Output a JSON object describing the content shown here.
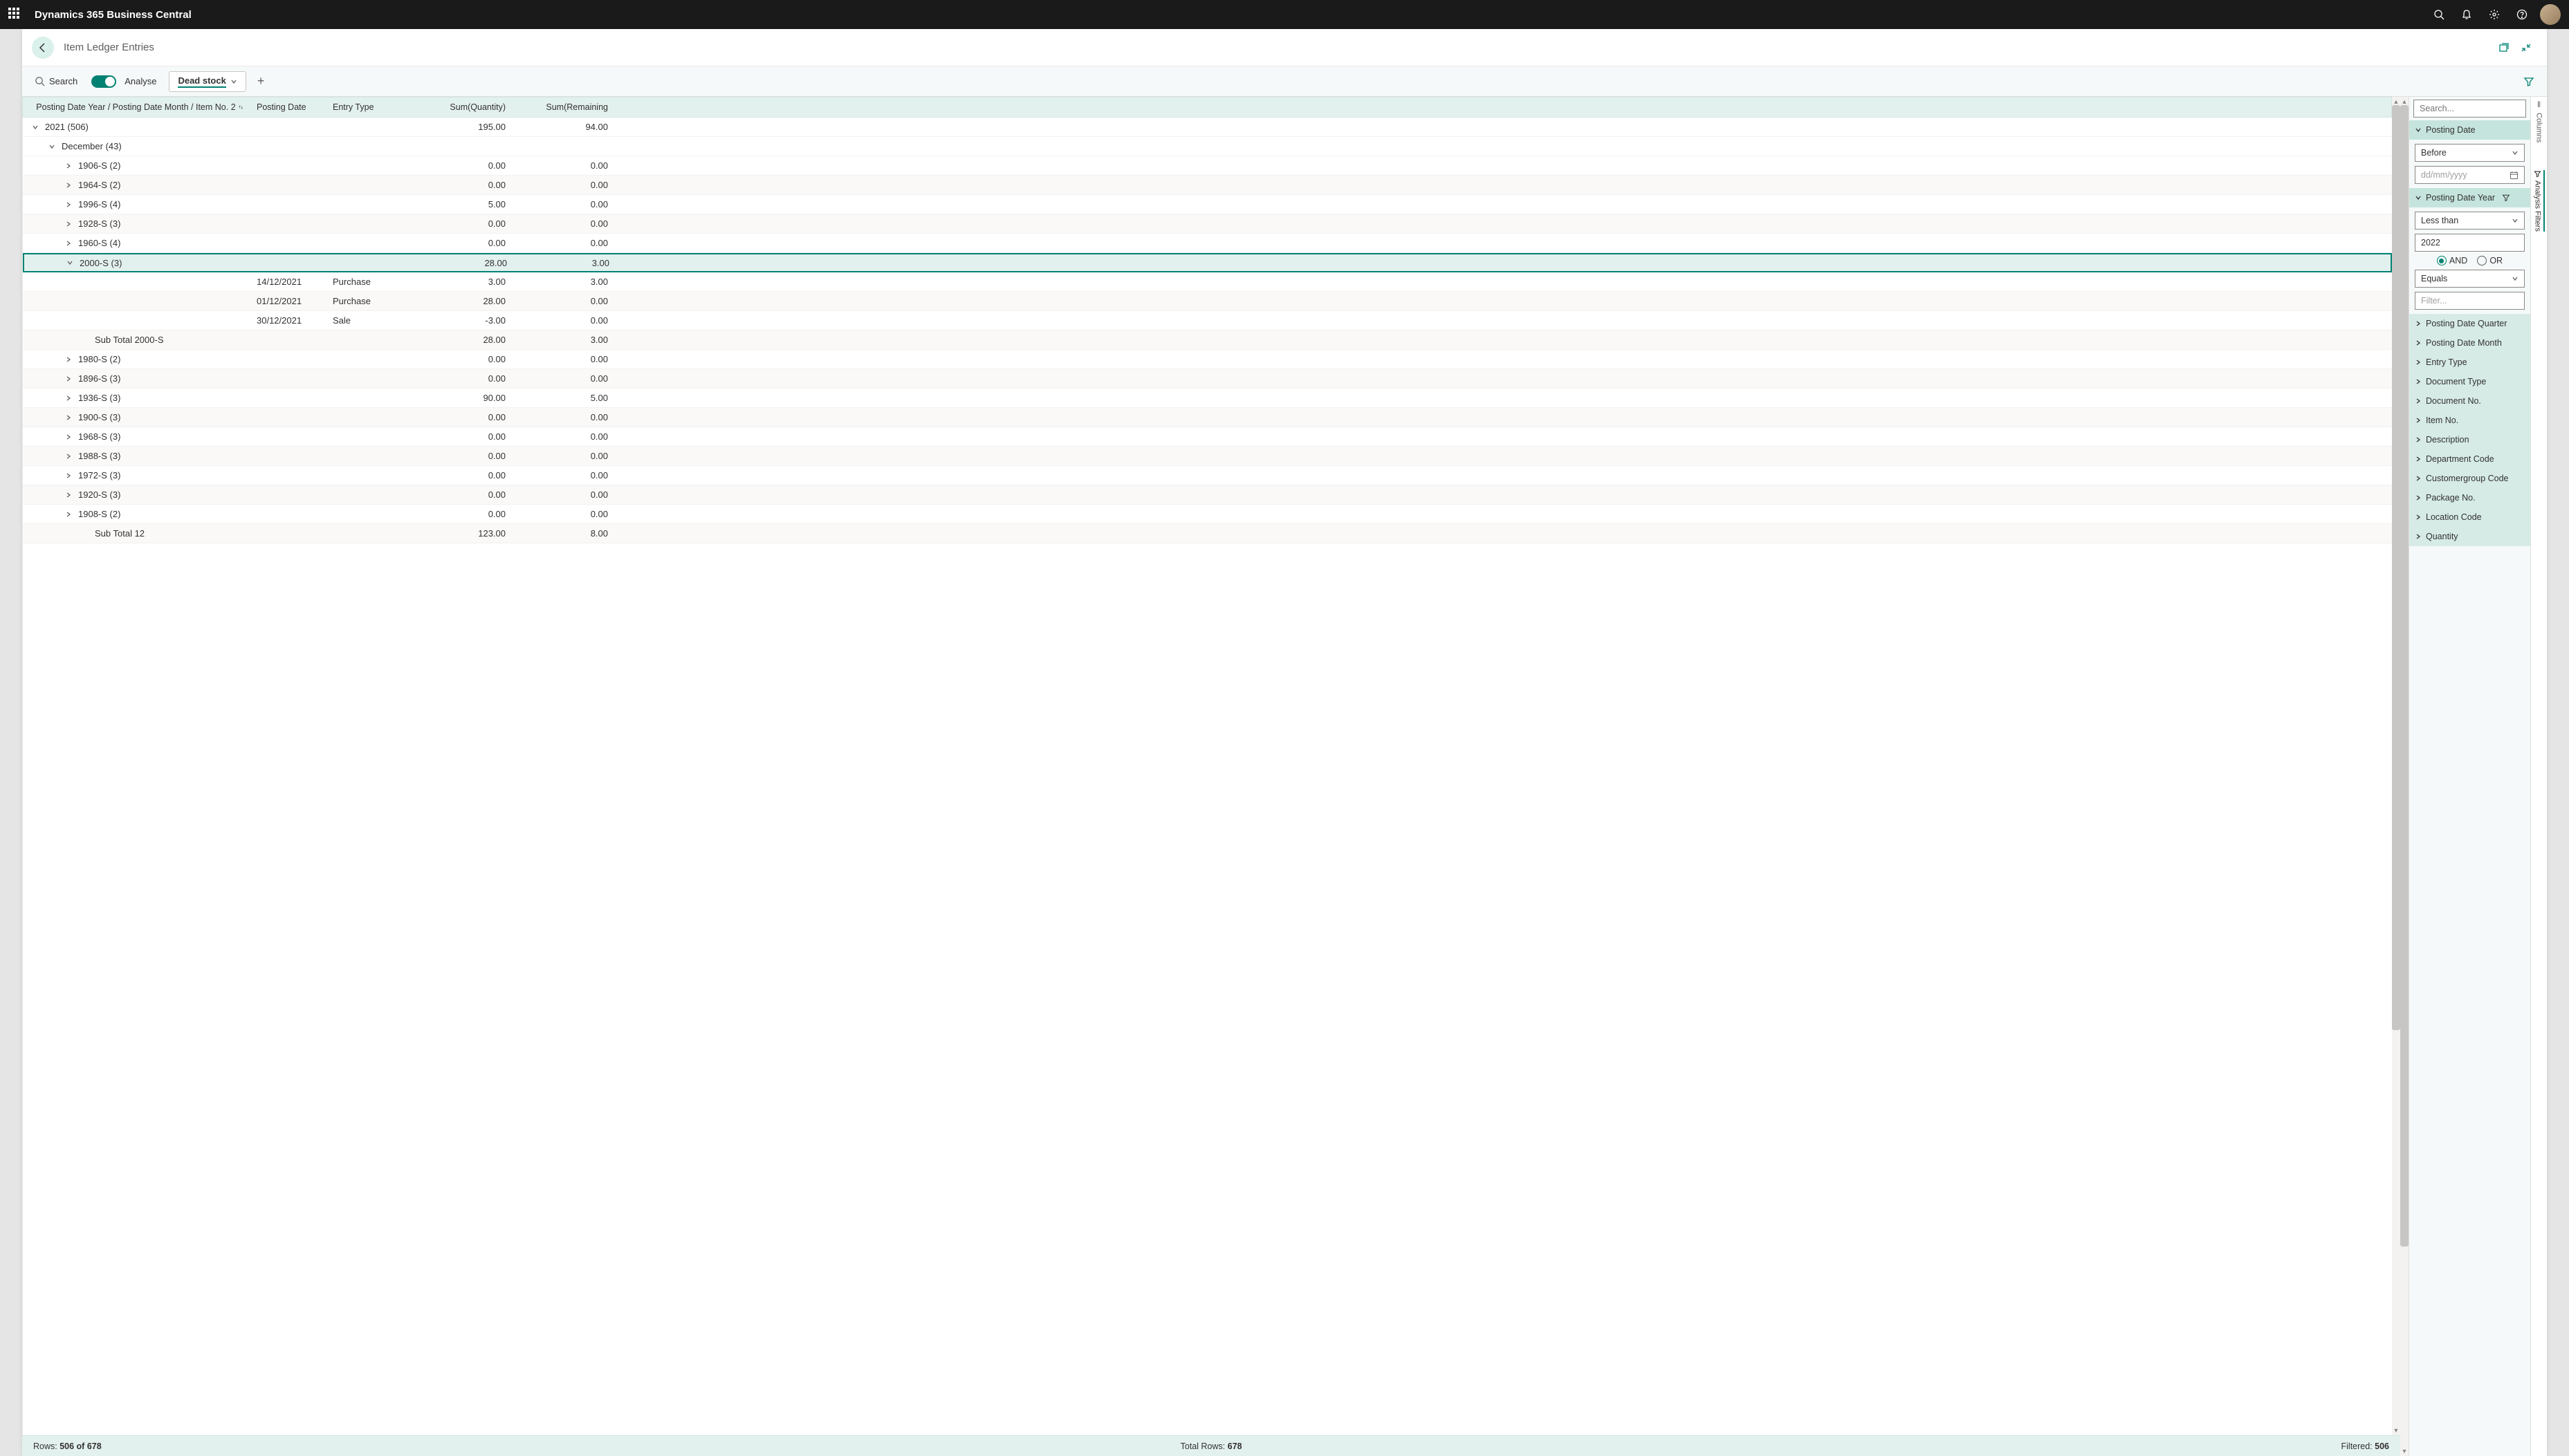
{
  "brand": "Dynamics 365 Business Central",
  "page_title": "Item Ledger Entries",
  "toolbar": {
    "search_label": "Search",
    "analyse_label": "Analyse",
    "tab_label": "Dead stock"
  },
  "columns": {
    "group": "Posting Date Year / Posting Date Month / Item No. 2",
    "posting_date": "Posting Date",
    "entry_type": "Entry Type",
    "sum_qty": "Sum(Quantity)",
    "sum_rem": "Sum(Remaining"
  },
  "rows": [
    {
      "type": "group",
      "indent": 0,
      "expanded": true,
      "label": "2021 (506)",
      "qty": "195.00",
      "rem": "94.00"
    },
    {
      "type": "group",
      "indent": 1,
      "expanded": true,
      "label": "December (43)",
      "qty": "",
      "rem": ""
    },
    {
      "type": "group",
      "indent": 2,
      "expanded": false,
      "label": "1906-S (2)",
      "qty": "0.00",
      "rem": "0.00"
    },
    {
      "type": "group",
      "indent": 2,
      "expanded": false,
      "label": "1964-S (2)",
      "qty": "0.00",
      "rem": "0.00",
      "striped": true
    },
    {
      "type": "group",
      "indent": 2,
      "expanded": false,
      "label": "1996-S (4)",
      "qty": "5.00",
      "rem": "0.00"
    },
    {
      "type": "group",
      "indent": 2,
      "expanded": false,
      "label": "1928-S (3)",
      "qty": "0.00",
      "rem": "0.00",
      "striped": true
    },
    {
      "type": "group",
      "indent": 2,
      "expanded": false,
      "label": "1960-S (4)",
      "qty": "0.00",
      "rem": "0.00"
    },
    {
      "type": "group",
      "indent": 2,
      "expanded": true,
      "label": "2000-S (3)",
      "qty": "28.00",
      "rem": "3.00",
      "selected": true
    },
    {
      "type": "detail",
      "date": "14/12/2021",
      "etype": "Purchase",
      "qty": "3.00",
      "rem": "3.00"
    },
    {
      "type": "detail",
      "date": "01/12/2021",
      "etype": "Purchase",
      "qty": "28.00",
      "rem": "0.00",
      "striped": true
    },
    {
      "type": "detail",
      "date": "30/12/2021",
      "etype": "Sale",
      "qty": "-3.00",
      "rem": "0.00"
    },
    {
      "type": "subtotal",
      "indent": 3,
      "label": "Sub Total 2000-S",
      "qty": "28.00",
      "rem": "3.00",
      "striped": true
    },
    {
      "type": "group",
      "indent": 2,
      "expanded": false,
      "label": "1980-S (2)",
      "qty": "0.00",
      "rem": "0.00"
    },
    {
      "type": "group",
      "indent": 2,
      "expanded": false,
      "label": "1896-S (3)",
      "qty": "0.00",
      "rem": "0.00",
      "striped": true
    },
    {
      "type": "group",
      "indent": 2,
      "expanded": false,
      "label": "1936-S (3)",
      "qty": "90.00",
      "rem": "5.00"
    },
    {
      "type": "group",
      "indent": 2,
      "expanded": false,
      "label": "1900-S (3)",
      "qty": "0.00",
      "rem": "0.00",
      "striped": true
    },
    {
      "type": "group",
      "indent": 2,
      "expanded": false,
      "label": "1968-S (3)",
      "qty": "0.00",
      "rem": "0.00"
    },
    {
      "type": "group",
      "indent": 2,
      "expanded": false,
      "label": "1988-S (3)",
      "qty": "0.00",
      "rem": "0.00",
      "striped": true
    },
    {
      "type": "group",
      "indent": 2,
      "expanded": false,
      "label": "1972-S (3)",
      "qty": "0.00",
      "rem": "0.00"
    },
    {
      "type": "group",
      "indent": 2,
      "expanded": false,
      "label": "1920-S (3)",
      "qty": "0.00",
      "rem": "0.00",
      "striped": true
    },
    {
      "type": "group",
      "indent": 2,
      "expanded": false,
      "label": "1908-S (2)",
      "qty": "0.00",
      "rem": "0.00"
    },
    {
      "type": "subtotal",
      "indent": 3,
      "label": "Sub Total 12",
      "qty": "123.00",
      "rem": "8.00",
      "striped": true
    }
  ],
  "status": {
    "rows_label": "Rows:",
    "rows_value": "506 of 678",
    "total_label": "Total Rows:",
    "total_value": "678",
    "filtered_label": "Filtered:",
    "filtered_value": "506"
  },
  "filters": {
    "search_placeholder": "Search...",
    "posting_date": {
      "title": "Posting Date",
      "operator": "Before",
      "placeholder": "dd/mm/yyyy"
    },
    "posting_date_year": {
      "title": "Posting Date Year",
      "op1": "Less than",
      "val1": "2022",
      "and_label": "AND",
      "or_label": "OR",
      "op2": "Equals",
      "val2_placeholder": "Filter..."
    },
    "collapsed": [
      "Posting Date Quarter",
      "Posting Date Month",
      "Entry Type",
      "Document Type",
      "Document No.",
      "Item No.",
      "Description",
      "Department Code",
      "Customergroup Code",
      "Package No.",
      "Location Code",
      "Quantity"
    ]
  },
  "side_tabs": {
    "columns": "Columns",
    "filters": "Analysis Filters"
  },
  "colors": {
    "accent": "#008272",
    "header_bg": "#e3f1ee",
    "filter_hdr": "#c5e4dd"
  }
}
